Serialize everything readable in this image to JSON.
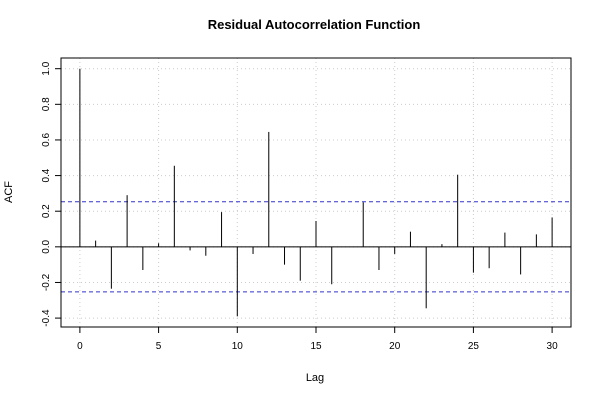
{
  "chart_data": {
    "type": "bar",
    "subtype": "acf-stem",
    "title": "Residual Autocorrelation Function",
    "xlabel": "Lag",
    "ylabel": "ACF",
    "xlim": [
      -1.2,
      31.2
    ],
    "ylim": [
      -0.45,
      1.06
    ],
    "xticks": [
      0,
      5,
      10,
      15,
      20,
      25,
      30
    ],
    "yticks": [
      -0.4,
      -0.2,
      0.0,
      0.2,
      0.4,
      0.6,
      0.8,
      1.0
    ],
    "ytick_labels": [
      "-0.4",
      "-0.2",
      "0.0",
      "0.2",
      "0.4",
      "0.6",
      "0.8",
      "1.0"
    ],
    "confidence_bounds": [
      0.253,
      -0.253
    ],
    "grid": true,
    "colors": {
      "stem": "#000000",
      "bounds": "#3333cc",
      "grid": "#cccccc",
      "zero": "#000000"
    },
    "lags": [
      0,
      1,
      2,
      3,
      4,
      5,
      6,
      7,
      8,
      9,
      10,
      11,
      12,
      13,
      14,
      15,
      16,
      17,
      18,
      19,
      20,
      21,
      22,
      23,
      24,
      25,
      26,
      27,
      28,
      29,
      30
    ],
    "values": [
      1.0,
      0.035,
      -0.235,
      0.29,
      -0.13,
      0.02,
      0.455,
      -0.02,
      -0.05,
      0.195,
      -0.39,
      -0.04,
      0.645,
      -0.1,
      -0.19,
      0.145,
      -0.21,
      0.0,
      0.25,
      -0.13,
      -0.04,
      0.085,
      -0.345,
      0.015,
      0.405,
      -0.145,
      -0.12,
      0.08,
      -0.155,
      0.07,
      0.165
    ]
  }
}
